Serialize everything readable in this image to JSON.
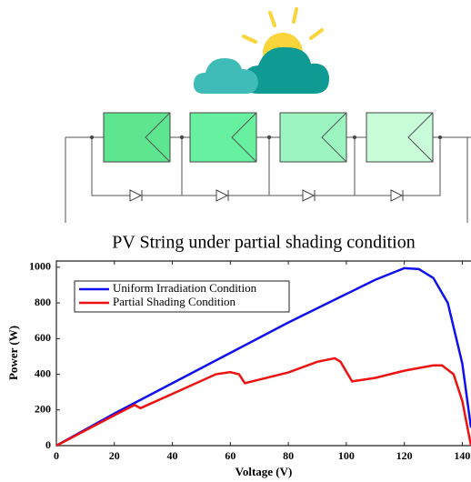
{
  "chart_data": {
    "type": "line",
    "title": "PV String under partial shading condition",
    "x_label": "Voltage (V)",
    "y_label": "Power (W)",
    "xlim": [
      0,
      143
    ],
    "ylim": [
      0,
      1035
    ],
    "xticks": [
      0,
      20,
      40,
      60,
      80,
      100,
      120,
      140
    ],
    "yticks": [
      0,
      200,
      400,
      600,
      800,
      1000
    ],
    "legend": "upper left",
    "series": [
      {
        "name": "Uniform Irradiation Condition",
        "color": "#1010ee",
        "x": [
          0,
          20,
          40,
          60,
          80,
          100,
          110,
          120,
          125,
          130,
          135,
          140,
          143
        ],
        "values": [
          0,
          180,
          350,
          520,
          690,
          850,
          930,
          995,
          990,
          940,
          800,
          460,
          100
        ]
      },
      {
        "name": "Partial Shading Condition",
        "color": "#ee1111",
        "x": [
          0,
          20,
          27,
          29,
          40,
          55,
          60,
          63,
          65,
          80,
          90,
          96,
          98,
          102,
          110,
          120,
          130,
          133,
          137,
          140,
          143
        ],
        "values": [
          0,
          170,
          228,
          210,
          290,
          400,
          412,
          400,
          350,
          410,
          470,
          490,
          470,
          360,
          380,
          420,
          450,
          450,
          400,
          250,
          0
        ]
      }
    ]
  }
}
